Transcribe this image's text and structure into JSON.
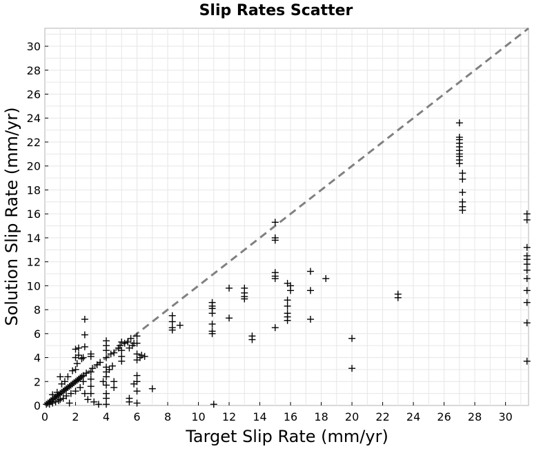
{
  "chart_data": {
    "type": "scatter",
    "title": "Slip Rates Scatter",
    "xlabel": "Target Slip Rate (mm/yr)",
    "ylabel": "Solution Slip Rate (mm/yr)",
    "xlim": [
      0,
      31.5
    ],
    "ylim": [
      0,
      31.5
    ],
    "xticks": [
      0,
      2,
      4,
      6,
      8,
      10,
      12,
      14,
      16,
      18,
      20,
      22,
      24,
      26,
      28,
      30
    ],
    "yticks": [
      0,
      2,
      4,
      6,
      8,
      10,
      12,
      14,
      16,
      18,
      20,
      22,
      24,
      26,
      28,
      30
    ],
    "grid": true,
    "marker": "plus",
    "marker_color": "#000000",
    "reference_line": {
      "style": "dashed",
      "color": "#808080",
      "from": [
        0,
        0
      ],
      "to": [
        31.5,
        31.5
      ]
    },
    "series": [
      {
        "points": [
          [
            0.1,
            0.1
          ],
          [
            0.2,
            0.2
          ],
          [
            0.3,
            0.3
          ],
          [
            0.3,
            0.1
          ],
          [
            0.4,
            0.4
          ],
          [
            0.5,
            0.5
          ],
          [
            0.5,
            0.2
          ],
          [
            0.5,
            0.9
          ],
          [
            0.6,
            0.6
          ],
          [
            0.7,
            0.7
          ],
          [
            0.7,
            0.3
          ],
          [
            0.8,
            0.8
          ],
          [
            0.8,
            1.1
          ],
          [
            0.9,
            0.9
          ],
          [
            0.9,
            0.4
          ],
          [
            1.0,
            1.0
          ],
          [
            1.0,
            2.4
          ],
          [
            1.0,
            0.5
          ],
          [
            1.1,
            1.1
          ],
          [
            1.1,
            1.8
          ],
          [
            1.2,
            1.2
          ],
          [
            1.2,
            0.6
          ],
          [
            1.3,
            1.3
          ],
          [
            1.3,
            2.0
          ],
          [
            1.4,
            1.4
          ],
          [
            1.4,
            0.8
          ],
          [
            1.5,
            1.5
          ],
          [
            1.5,
            2.4
          ],
          [
            1.6,
            1.6
          ],
          [
            1.6,
            0.2
          ],
          [
            1.7,
            1.7
          ],
          [
            1.7,
            1.0
          ],
          [
            1.8,
            1.8
          ],
          [
            1.8,
            2.9
          ],
          [
            1.9,
            1.9
          ],
          [
            2.0,
            2.0
          ],
          [
            2.0,
            3.0
          ],
          [
            2.0,
            4.0
          ],
          [
            2.0,
            4.7
          ],
          [
            2.0,
            1.2
          ],
          [
            2.1,
            2.1
          ],
          [
            2.1,
            3.5
          ],
          [
            2.2,
            2.2
          ],
          [
            2.2,
            4.2
          ],
          [
            2.2,
            4.8
          ],
          [
            2.3,
            2.3
          ],
          [
            2.3,
            1.5
          ],
          [
            2.4,
            2.4
          ],
          [
            2.4,
            3.9
          ],
          [
            2.5,
            2.5
          ],
          [
            2.5,
            2.0
          ],
          [
            2.5,
            4.0
          ],
          [
            2.6,
            4.9
          ],
          [
            2.6,
            5.9
          ],
          [
            2.6,
            7.2
          ],
          [
            2.6,
            1.0
          ],
          [
            2.7,
            2.7
          ],
          [
            2.8,
            0.5
          ],
          [
            3.0,
            2.8
          ],
          [
            3.0,
            4.1
          ],
          [
            3.0,
            4.3
          ],
          [
            3.0,
            2.2
          ],
          [
            3.0,
            1.6
          ],
          [
            3.0,
            1.0
          ],
          [
            3.1,
            3.1
          ],
          [
            3.2,
            0.3
          ],
          [
            3.4,
            3.4
          ],
          [
            3.5,
            0.1
          ],
          [
            3.6,
            3.6
          ],
          [
            3.8,
            2.0
          ],
          [
            4.0,
            4.0
          ],
          [
            4.0,
            5.4
          ],
          [
            4.0,
            5.0
          ],
          [
            4.0,
            4.6
          ],
          [
            4.0,
            3.2
          ],
          [
            4.0,
            2.8
          ],
          [
            4.0,
            2.4
          ],
          [
            4.0,
            1.7
          ],
          [
            4.0,
            1.0
          ],
          [
            4.0,
            0.6
          ],
          [
            4.0,
            0.1
          ],
          [
            4.2,
            3.0
          ],
          [
            4.3,
            4.3
          ],
          [
            4.4,
            3.3
          ],
          [
            4.5,
            4.4
          ],
          [
            4.5,
            2.0
          ],
          [
            4.5,
            1.5
          ],
          [
            4.8,
            4.8
          ],
          [
            4.9,
            5.0
          ],
          [
            5.0,
            3.7
          ],
          [
            5.0,
            4.6
          ],
          [
            5.0,
            5.3
          ],
          [
            5.0,
            4.1
          ],
          [
            5.2,
            5.2
          ],
          [
            5.4,
            5.3
          ],
          [
            5.5,
            0.6
          ],
          [
            5.5,
            0.3
          ],
          [
            5.5,
            4.8
          ],
          [
            5.6,
            5.6
          ],
          [
            5.7,
            5.0
          ],
          [
            5.8,
            1.8
          ],
          [
            5.8,
            5.2
          ],
          [
            6.0,
            5.8
          ],
          [
            6.0,
            5.2
          ],
          [
            6.0,
            4.3
          ],
          [
            6.0,
            3.8
          ],
          [
            6.0,
            2.5
          ],
          [
            6.0,
            2.0
          ],
          [
            6.0,
            1.2
          ],
          [
            6.0,
            0.2
          ],
          [
            6.2,
            4.0
          ],
          [
            6.3,
            4.2
          ],
          [
            6.5,
            4.1
          ],
          [
            7.0,
            1.4
          ],
          [
            8.3,
            7.5
          ],
          [
            8.3,
            7.0
          ],
          [
            8.3,
            6.5
          ],
          [
            8.3,
            6.3
          ],
          [
            8.8,
            6.7
          ],
          [
            10.9,
            8.6
          ],
          [
            10.9,
            8.3
          ],
          [
            10.9,
            8.1
          ],
          [
            10.9,
            7.7
          ],
          [
            10.9,
            6.8
          ],
          [
            10.9,
            6.2
          ],
          [
            10.9,
            6.0
          ],
          [
            11.0,
            0.1
          ],
          [
            12.0,
            9.8
          ],
          [
            12.0,
            7.3
          ],
          [
            13.0,
            9.8
          ],
          [
            13.0,
            9.4
          ],
          [
            13.0,
            9.1
          ],
          [
            13.0,
            8.9
          ],
          [
            13.5,
            5.8
          ],
          [
            13.5,
            5.5
          ],
          [
            15.0,
            15.3
          ],
          [
            15.0,
            14.0
          ],
          [
            15.0,
            13.8
          ],
          [
            15.0,
            11.1
          ],
          [
            15.0,
            10.8
          ],
          [
            15.0,
            10.6
          ],
          [
            15.0,
            6.5
          ],
          [
            15.8,
            10.2
          ],
          [
            15.8,
            8.8
          ],
          [
            15.8,
            8.3
          ],
          [
            15.8,
            7.7
          ],
          [
            15.8,
            7.4
          ],
          [
            15.8,
            7.1
          ],
          [
            16.0,
            10.0
          ],
          [
            16.0,
            9.6
          ],
          [
            17.3,
            11.2
          ],
          [
            17.3,
            9.6
          ],
          [
            17.3,
            7.2
          ],
          [
            18.3,
            10.6
          ],
          [
            20.0,
            5.6
          ],
          [
            20.0,
            3.1
          ],
          [
            23.0,
            9.3
          ],
          [
            23.0,
            9.0
          ],
          [
            27.0,
            23.6
          ],
          [
            27.0,
            22.4
          ],
          [
            27.0,
            22.2
          ],
          [
            27.0,
            21.9
          ],
          [
            27.0,
            21.6
          ],
          [
            27.0,
            21.3
          ],
          [
            27.0,
            21.0
          ],
          [
            27.0,
            20.8
          ],
          [
            27.0,
            20.5
          ],
          [
            27.0,
            20.2
          ],
          [
            27.2,
            19.4
          ],
          [
            27.2,
            18.9
          ],
          [
            27.2,
            17.8
          ],
          [
            27.2,
            17.0
          ],
          [
            27.2,
            16.6
          ],
          [
            27.2,
            16.3
          ],
          [
            31.4,
            16.0
          ],
          [
            31.4,
            15.5
          ],
          [
            31.4,
            13.2
          ],
          [
            31.4,
            12.5
          ],
          [
            31.4,
            12.2
          ],
          [
            31.4,
            11.8
          ],
          [
            31.4,
            11.3
          ],
          [
            31.4,
            10.6
          ],
          [
            31.4,
            9.6
          ],
          [
            31.4,
            8.6
          ],
          [
            31.4,
            6.9
          ],
          [
            31.4,
            3.7
          ]
        ]
      }
    ]
  }
}
